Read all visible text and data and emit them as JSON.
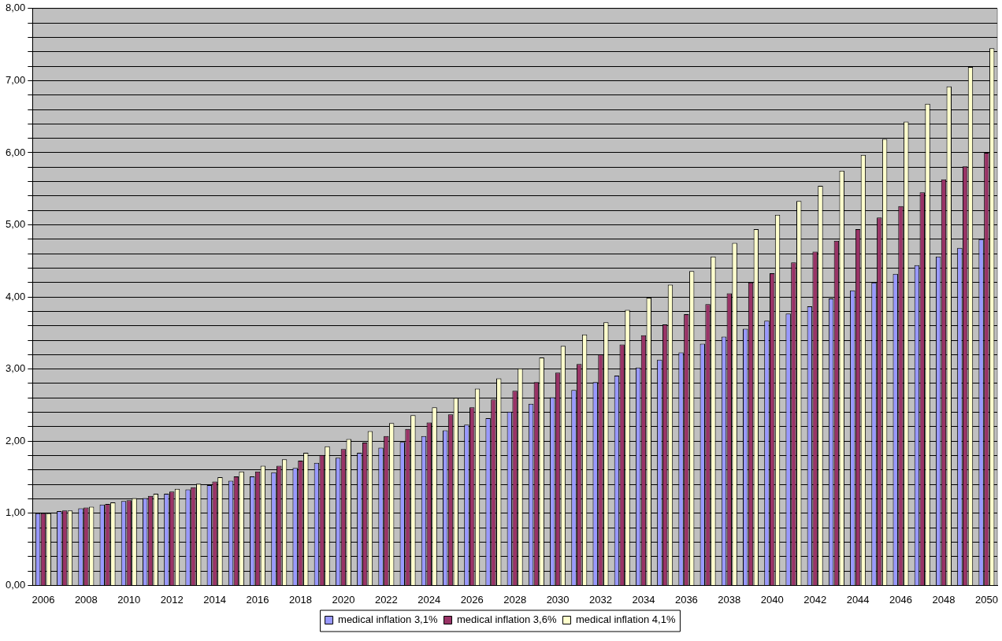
{
  "chart_data": {
    "type": "bar",
    "categories": [
      "2006",
      null,
      "2008",
      null,
      "2010",
      null,
      "2012",
      null,
      "2014",
      null,
      "2016",
      null,
      "2018",
      null,
      "2020",
      null,
      "2022",
      null,
      "2024",
      null,
      "2026",
      null,
      "2028",
      null,
      "2030",
      null,
      "2032",
      null,
      "2034",
      null,
      "2036",
      null,
      "2038",
      null,
      "2040",
      null,
      "2042",
      null,
      "2044",
      null,
      "2046",
      null,
      "2048",
      null,
      "2050"
    ],
    "series": [
      {
        "name": "medical inflation 3,1%",
        "color": "#9999ff",
        "values": [
          1.0,
          1.03,
          1.07,
          1.12,
          1.17,
          1.21,
          1.27,
          1.33,
          1.39,
          1.45,
          1.51,
          1.57,
          1.63,
          1.7,
          1.77,
          1.84,
          1.91,
          1.99,
          2.07,
          2.15,
          2.23,
          2.32,
          2.41,
          2.52,
          2.61,
          2.71,
          2.82,
          2.91,
          3.02,
          3.13,
          3.23,
          3.35,
          3.45,
          3.56,
          3.67,
          3.77,
          3.87,
          3.98,
          4.09,
          4.2,
          4.32,
          4.44,
          4.56,
          4.68,
          4.8
        ]
      },
      {
        "name": "medical inflation 3,6%",
        "color": "#993366",
        "values": [
          1.0,
          1.04,
          1.08,
          1.13,
          1.18,
          1.24,
          1.3,
          1.36,
          1.44,
          1.51,
          1.58,
          1.66,
          1.73,
          1.81,
          1.89,
          1.98,
          2.07,
          2.17,
          2.26,
          2.37,
          2.47,
          2.58,
          2.7,
          2.82,
          2.95,
          3.07,
          3.2,
          3.34,
          3.47,
          3.62,
          3.76,
          3.9,
          4.05,
          4.2,
          4.33,
          4.48,
          4.63,
          4.78,
          4.94,
          5.1,
          5.26,
          5.45,
          5.63,
          5.81,
          6.0
        ]
      },
      {
        "name": "medical inflation 4,1%",
        "color": "#ffffcc",
        "values": [
          1.0,
          1.04,
          1.09,
          1.15,
          1.21,
          1.27,
          1.34,
          1.41,
          1.5,
          1.58,
          1.66,
          1.75,
          1.84,
          1.93,
          2.03,
          2.14,
          2.25,
          2.36,
          2.47,
          2.6,
          2.73,
          2.87,
          3.01,
          3.16,
          3.32,
          3.48,
          3.65,
          3.82,
          3.99,
          4.17,
          4.36,
          4.56,
          4.75,
          4.94,
          5.14,
          5.33,
          5.54,
          5.75,
          5.97,
          6.19,
          6.43,
          6.68,
          6.92,
          7.19,
          7.45
        ]
      }
    ],
    "ylim": [
      0,
      8
    ],
    "yticks": [
      {
        "value": 0,
        "label": "0,00"
      },
      {
        "value": 0.2,
        "label": null
      },
      {
        "value": 0.4,
        "label": null
      },
      {
        "value": 0.6,
        "label": null
      },
      {
        "value": 0.8,
        "label": null
      },
      {
        "value": 1,
        "label": "1,00"
      },
      {
        "value": 1.2,
        "label": null
      },
      {
        "value": 1.4,
        "label": null
      },
      {
        "value": 1.6,
        "label": null
      },
      {
        "value": 1.8,
        "label": null
      },
      {
        "value": 2,
        "label": "2,00"
      },
      {
        "value": 2.2,
        "label": null
      },
      {
        "value": 2.4,
        "label": null
      },
      {
        "value": 2.6,
        "label": null
      },
      {
        "value": 2.8,
        "label": null
      },
      {
        "value": 3,
        "label": "3,00"
      },
      {
        "value": 3.2,
        "label": null
      },
      {
        "value": 3.4,
        "label": null
      },
      {
        "value": 3.6,
        "label": null
      },
      {
        "value": 3.8,
        "label": null
      },
      {
        "value": 4,
        "label": "4,00"
      },
      {
        "value": 4.2,
        "label": null
      },
      {
        "value": 4.4,
        "label": null
      },
      {
        "value": 4.6,
        "label": null
      },
      {
        "value": 4.8,
        "label": null
      },
      {
        "value": 5,
        "label": "5,00"
      },
      {
        "value": 5.2,
        "label": null
      },
      {
        "value": 5.4,
        "label": null
      },
      {
        "value": 5.6,
        "label": null
      },
      {
        "value": 5.8,
        "label": null
      },
      {
        "value": 6,
        "label": "6,00"
      },
      {
        "value": 6.2,
        "label": null
      },
      {
        "value": 6.4,
        "label": null
      },
      {
        "value": 6.6,
        "label": null
      },
      {
        "value": 6.8,
        "label": null
      },
      {
        "value": 7,
        "label": "7,00"
      },
      {
        "value": 7.2,
        "label": null
      },
      {
        "value": 7.4,
        "label": null
      },
      {
        "value": 7.6,
        "label": null
      },
      {
        "value": 7.8,
        "label": null
      },
      {
        "value": 8,
        "label": "8,00"
      }
    ],
    "grid": "y",
    "legend": "bottom"
  }
}
